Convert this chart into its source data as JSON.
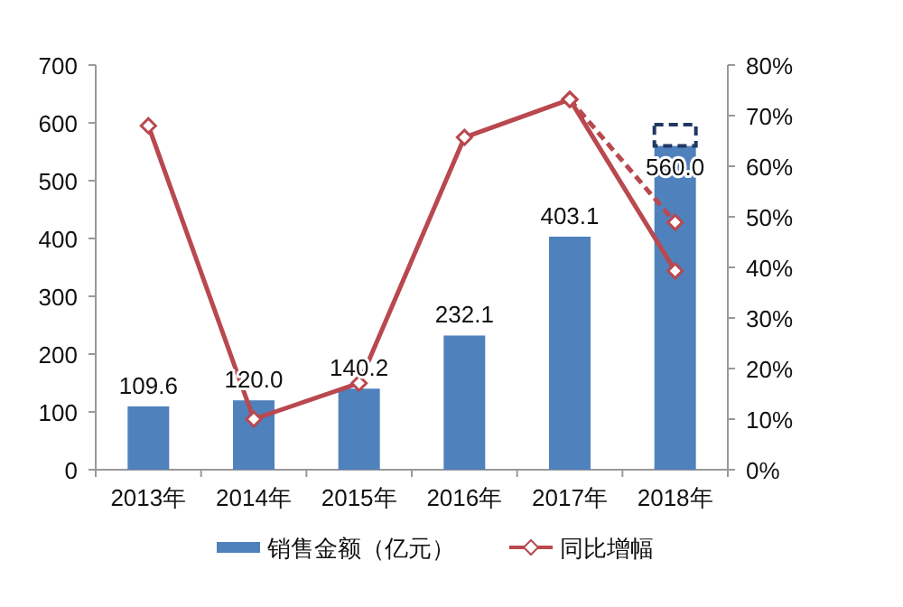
{
  "chart_data": {
    "type": "bar",
    "categories": [
      "2013年",
      "2014年",
      "2015年",
      "2016年",
      "2017年",
      "2018年"
    ],
    "series": [
      {
        "name": "销售金额（亿元）",
        "color": "#4f81bd",
        "values": [
          109.6,
          120.0,
          140.2,
          232.1,
          403.1,
          560.0
        ],
        "value_labels": [
          "109.6",
          "120.0",
          "140.2",
          "232.1",
          "403.1",
          "560.0"
        ]
      },
      {
        "type": "bar",
        "color": "#1f3864",
        "base": [
          null,
          null,
          null,
          null,
          null,
          560.0
        ],
        "values": [
          null,
          null,
          null,
          null,
          null,
          37
        ],
        "line_style": "dashed"
      },
      {
        "type": "line",
        "axis": "y2",
        "name": "同比增幅",
        "color": "#b9484f",
        "values": [
          68,
          10,
          17.1,
          65.7,
          73.2,
          39.3
        ],
        "marker": "diamond"
      },
      {
        "type": "line",
        "axis": "y2",
        "color": "#b9484f",
        "values": [
          null,
          null,
          null,
          null,
          73.2,
          48.9
        ],
        "marker": "diamond",
        "line_style": "dashed"
      }
    ],
    "ylim": [
      0,
      700
    ],
    "yticks": [
      0,
      100,
      200,
      300,
      400,
      500,
      600,
      700
    ],
    "y2lim": [
      0,
      80
    ],
    "y2ticks": [
      {
        "value": 0,
        "label": "0%"
      },
      {
        "value": 10,
        "label": "10%"
      },
      {
        "value": 20,
        "label": "20%"
      },
      {
        "value": 30,
        "label": "30%"
      },
      {
        "value": 40,
        "label": "40%"
      },
      {
        "value": 50,
        "label": "50%"
      },
      {
        "value": 60,
        "label": "60%"
      },
      {
        "value": 70,
        "label": "70%"
      },
      {
        "value": 80,
        "label": "80%"
      }
    ],
    "legend": "bottom"
  }
}
